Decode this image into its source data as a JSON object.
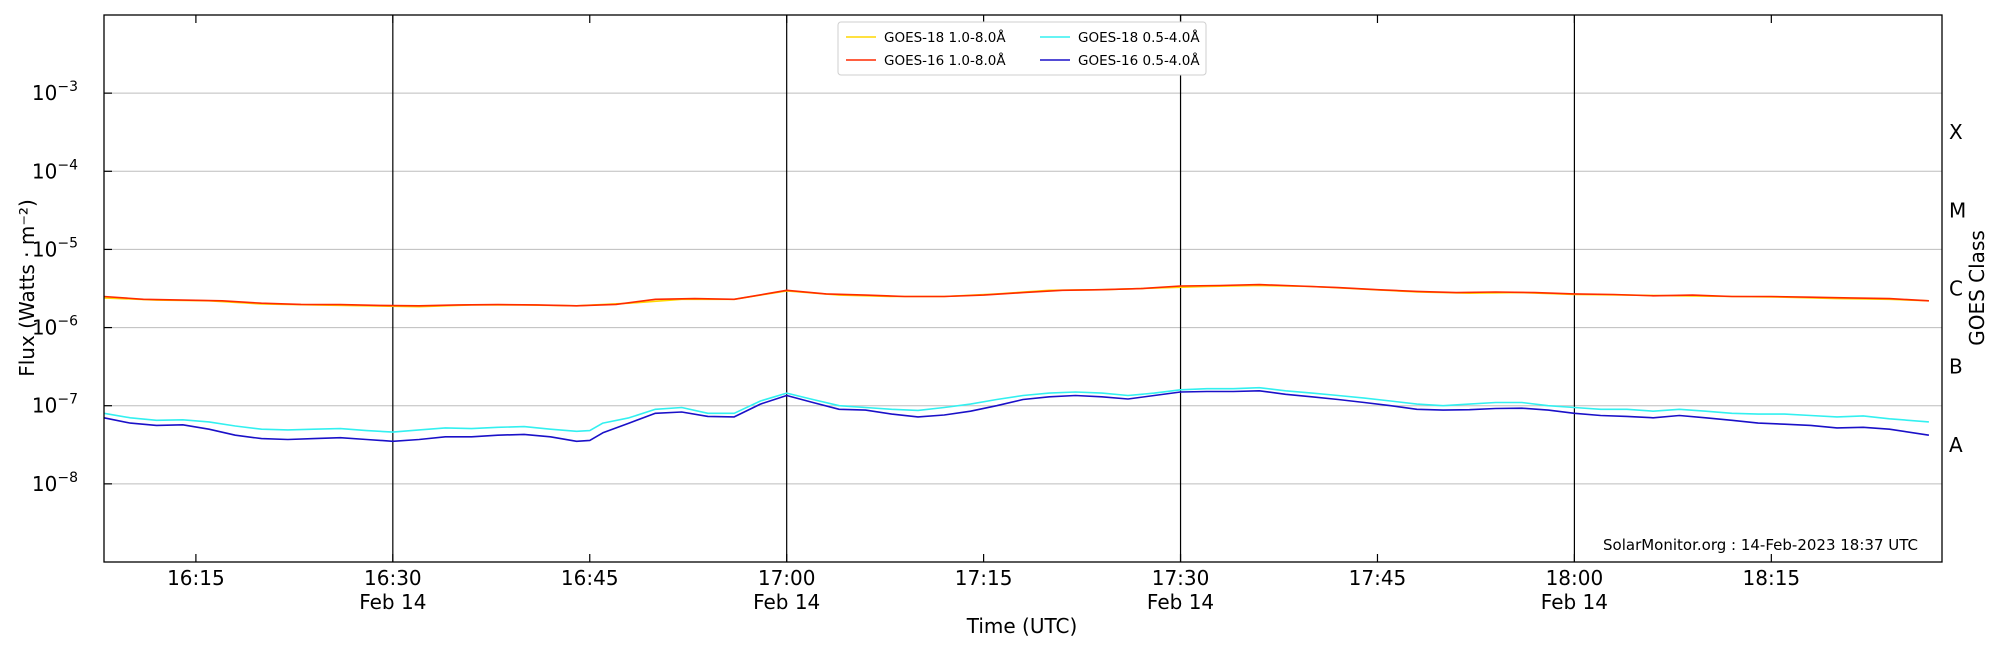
{
  "chart_data": {
    "type": "line",
    "xlabel": "Time (UTC)",
    "ylabel": "Flux (Watts · m⁻²)",
    "y2label": "GOES Class",
    "yscale": "log",
    "x_range": [
      "16:08",
      "18:28"
    ],
    "ylim": [
      1e-09,
      0.01
    ],
    "grid": "horizontal at decades and vertical at half-hours",
    "x_ticks": [
      {
        "t": "16:15",
        "label": "16:15",
        "sub": ""
      },
      {
        "t": "16:30",
        "label": "16:30",
        "sub": "Feb 14"
      },
      {
        "t": "16:45",
        "label": "16:45",
        "sub": ""
      },
      {
        "t": "17:00",
        "label": "17:00",
        "sub": "Feb 14"
      },
      {
        "t": "17:15",
        "label": "17:15",
        "sub": ""
      },
      {
        "t": "17:30",
        "label": "17:30",
        "sub": "Feb 14"
      },
      {
        "t": "17:45",
        "label": "17:45",
        "sub": ""
      },
      {
        "t": "18:00",
        "label": "18:00",
        "sub": "Feb 14"
      },
      {
        "t": "18:15",
        "label": "18:15",
        "sub": ""
      }
    ],
    "y_ticks": [
      {
        "value": 1e-08,
        "base": "10",
        "exp": "−8"
      },
      {
        "value": 1e-07,
        "base": "10",
        "exp": "−7"
      },
      {
        "value": 1e-06,
        "base": "10",
        "exp": "−6"
      },
      {
        "value": 1e-05,
        "base": "10",
        "exp": "−5"
      },
      {
        "value": 0.0001,
        "base": "10",
        "exp": "−4"
      },
      {
        "value": 0.001,
        "base": "10",
        "exp": "−3"
      }
    ],
    "class_labels": [
      {
        "label": "A",
        "value": 3.16e-08
      },
      {
        "label": "B",
        "value": 3.16e-07
      },
      {
        "label": "C",
        "value": 3.16e-06
      },
      {
        "label": "M",
        "value": 3.16e-05
      },
      {
        "label": "X",
        "value": 0.000316
      }
    ],
    "legend": {
      "placement": "top-center",
      "entries": [
        {
          "label": "GOES-18 1.0-8.0Å",
          "color": "#ffd700"
        },
        {
          "label": "GOES-16 1.0-8.0Å",
          "color": "#ff2a00"
        },
        {
          "label": "GOES-18 0.5-4.0Å",
          "color": "#33f0f0"
        },
        {
          "label": "GOES-16 0.5-4.0Å",
          "color": "#1a10c8"
        }
      ]
    },
    "annotation": "SolarMonitor.org : 14-Feb-2023 18:37 UTC",
    "series": [
      {
        "name": "GOES-18 1.0-8.0Å",
        "color": "#ffd700",
        "x": [
          "16:08",
          "16:12",
          "16:16",
          "16:20",
          "16:24",
          "16:28",
          "16:32",
          "16:36",
          "16:40",
          "16:44",
          "16:48",
          "16:52",
          "16:56",
          "17:00",
          "17:04",
          "17:08",
          "17:12",
          "17:16",
          "17:20",
          "17:24",
          "17:28",
          "17:32",
          "17:36",
          "17:40",
          "17:44",
          "17:48",
          "17:52",
          "17:56",
          "18:00",
          "18:04",
          "18:08",
          "18:12",
          "18:16",
          "18:20",
          "18:24",
          "18:27"
        ],
        "y": [
          2.4e-06,
          2.25e-06,
          2.2e-06,
          2e-06,
          1.95e-06,
          1.9e-06,
          1.85e-06,
          1.95e-06,
          1.95e-06,
          1.9e-06,
          2.05e-06,
          2.3e-06,
          2.3e-06,
          2.95e-06,
          2.6e-06,
          2.5e-06,
          2.5e-06,
          2.7e-06,
          3e-06,
          3.05e-06,
          3.2e-06,
          3.35e-06,
          3.45e-06,
          3.35e-06,
          3.1e-06,
          2.85e-06,
          2.75e-06,
          2.8e-06,
          2.65e-06,
          2.6e-06,
          2.55e-06,
          2.5e-06,
          2.45e-06,
          2.35e-06,
          2.3e-06,
          2.2e-06
        ]
      },
      {
        "name": "GOES-16 1.0-8.0Å",
        "color": "#ff2a00",
        "x": [
          "16:08",
          "16:11",
          "16:14",
          "16:17",
          "16:20",
          "16:23",
          "16:26",
          "16:29",
          "16:32",
          "16:35",
          "16:38",
          "16:41",
          "16:44",
          "16:47",
          "16:50",
          "16:53",
          "16:56",
          "16:59",
          "17:00",
          "17:03",
          "17:06",
          "17:09",
          "17:12",
          "17:15",
          "17:18",
          "17:21",
          "17:24",
          "17:27",
          "17:30",
          "17:33",
          "17:36",
          "17:39",
          "17:42",
          "17:45",
          "17:48",
          "17:51",
          "17:54",
          "17:57",
          "18:00",
          "18:03",
          "18:06",
          "18:09",
          "18:12",
          "18:15",
          "18:18",
          "18:21",
          "18:24",
          "18:27"
        ],
        "y": [
          2.5e-06,
          2.3e-06,
          2.25e-06,
          2.2e-06,
          2.05e-06,
          1.98e-06,
          1.97e-06,
          1.92e-06,
          1.9e-06,
          1.95e-06,
          1.97e-06,
          1.95e-06,
          1.9e-06,
          1.98e-06,
          2.3e-06,
          2.35e-06,
          2.3e-06,
          2.8e-06,
          3e-06,
          2.7e-06,
          2.6e-06,
          2.5e-06,
          2.5e-06,
          2.6e-06,
          2.8e-06,
          3e-06,
          3.05e-06,
          3.15e-06,
          3.4e-06,
          3.45e-06,
          3.55e-06,
          3.4e-06,
          3.25e-06,
          3.05e-06,
          2.9e-06,
          2.8e-06,
          2.85e-06,
          2.8e-06,
          2.7e-06,
          2.65e-06,
          2.55e-06,
          2.6e-06,
          2.5e-06,
          2.5e-06,
          2.45e-06,
          2.4e-06,
          2.35e-06,
          2.2e-06
        ]
      },
      {
        "name": "GOES-18 0.5-4.0Å",
        "color": "#33f0f0",
        "x": [
          "16:08",
          "16:10",
          "16:12",
          "16:14",
          "16:16",
          "16:18",
          "16:20",
          "16:22",
          "16:24",
          "16:26",
          "16:28",
          "16:30",
          "16:32",
          "16:34",
          "16:36",
          "16:38",
          "16:40",
          "16:42",
          "16:44",
          "16:45",
          "16:46",
          "16:48",
          "16:50",
          "16:52",
          "16:54",
          "16:56",
          "16:58",
          "17:00",
          "17:02",
          "17:04",
          "17:06",
          "17:08",
          "17:10",
          "17:12",
          "17:14",
          "17:16",
          "17:18",
          "17:20",
          "17:22",
          "17:24",
          "17:26",
          "17:28",
          "17:30",
          "17:32",
          "17:34",
          "17:36",
          "17:38",
          "17:40",
          "17:42",
          "17:44",
          "17:46",
          "17:48",
          "17:50",
          "17:52",
          "17:54",
          "17:56",
          "17:58",
          "18:00",
          "18:02",
          "18:04",
          "18:06",
          "18:08",
          "18:10",
          "18:12",
          "18:14",
          "18:16",
          "18:18",
          "18:20",
          "18:22",
          "18:24",
          "18:27"
        ],
        "y": [
          8e-08,
          7e-08,
          6.5e-08,
          6.6e-08,
          6.2e-08,
          5.5e-08,
          5e-08,
          4.9e-08,
          5e-08,
          5.1e-08,
          4.8e-08,
          4.6e-08,
          4.9e-08,
          5.2e-08,
          5.1e-08,
          5.3e-08,
          5.4e-08,
          5e-08,
          4.7e-08,
          4.8e-08,
          6e-08,
          7e-08,
          9e-08,
          9.5e-08,
          8e-08,
          8e-08,
          1.15e-07,
          1.45e-07,
          1.2e-07,
          1e-07,
          9.5e-08,
          9e-08,
          8.7e-08,
          9.5e-08,
          1.05e-07,
          1.2e-07,
          1.35e-07,
          1.45e-07,
          1.5e-07,
          1.45e-07,
          1.35e-07,
          1.45e-07,
          1.6e-07,
          1.65e-07,
          1.65e-07,
          1.7e-07,
          1.55e-07,
          1.45e-07,
          1.35e-07,
          1.25e-07,
          1.15e-07,
          1.05e-07,
          1e-07,
          1.05e-07,
          1.1e-07,
          1.1e-07,
          1e-07,
          9.5e-08,
          9e-08,
          9e-08,
          8.5e-08,
          9e-08,
          8.5e-08,
          8e-08,
          7.8e-08,
          7.8e-08,
          7.5e-08,
          7.2e-08,
          7.4e-08,
          6.8e-08,
          6.2e-08
        ]
      },
      {
        "name": "GOES-16 0.5-4.0Å",
        "color": "#1a10c8",
        "x": [
          "16:08",
          "16:10",
          "16:12",
          "16:14",
          "16:16",
          "16:18",
          "16:20",
          "16:22",
          "16:24",
          "16:26",
          "16:28",
          "16:30",
          "16:32",
          "16:34",
          "16:36",
          "16:38",
          "16:40",
          "16:42",
          "16:44",
          "16:45",
          "16:46",
          "16:48",
          "16:50",
          "16:52",
          "16:54",
          "16:56",
          "16:58",
          "17:00",
          "17:02",
          "17:04",
          "17:06",
          "17:08",
          "17:10",
          "17:12",
          "17:14",
          "17:16",
          "17:18",
          "17:20",
          "17:22",
          "17:24",
          "17:26",
          "17:28",
          "17:30",
          "17:32",
          "17:34",
          "17:36",
          "17:38",
          "17:40",
          "17:42",
          "17:44",
          "17:46",
          "17:48",
          "17:50",
          "17:52",
          "17:54",
          "17:56",
          "17:58",
          "18:00",
          "18:02",
          "18:04",
          "18:06",
          "18:08",
          "18:10",
          "18:12",
          "18:14",
          "18:16",
          "18:18",
          "18:20",
          "18:22",
          "18:24",
          "18:27"
        ],
        "y": [
          7e-08,
          6e-08,
          5.6e-08,
          5.7e-08,
          5e-08,
          4.2e-08,
          3.8e-08,
          3.7e-08,
          3.8e-08,
          3.9e-08,
          3.7e-08,
          3.5e-08,
          3.7e-08,
          4e-08,
          4e-08,
          4.2e-08,
          4.3e-08,
          4e-08,
          3.5e-08,
          3.6e-08,
          4.5e-08,
          6e-08,
          8e-08,
          8.3e-08,
          7.3e-08,
          7.2e-08,
          1.05e-07,
          1.35e-07,
          1.1e-07,
          9e-08,
          8.8e-08,
          7.8e-08,
          7.2e-08,
          7.6e-08,
          8.5e-08,
          1e-07,
          1.2e-07,
          1.3e-07,
          1.35e-07,
          1.3e-07,
          1.22e-07,
          1.35e-07,
          1.5e-07,
          1.52e-07,
          1.52e-07,
          1.55e-07,
          1.4e-07,
          1.3e-07,
          1.2e-07,
          1.1e-07,
          1e-07,
          9e-08,
          8.8e-08,
          8.9e-08,
          9.2e-08,
          9.3e-08,
          8.8e-08,
          8e-08,
          7.5e-08,
          7.3e-08,
          7e-08,
          7.5e-08,
          7e-08,
          6.5e-08,
          6e-08,
          5.8e-08,
          5.6e-08,
          5.2e-08,
          5.3e-08,
          5e-08,
          4.2e-08
        ]
      }
    ]
  }
}
